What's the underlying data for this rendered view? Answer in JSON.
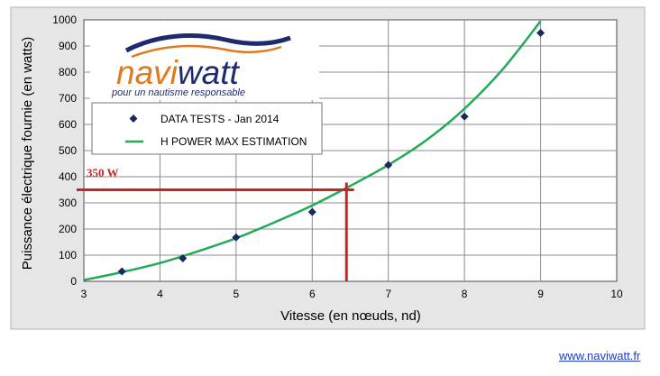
{
  "chart_data": {
    "type": "scatter",
    "title": "",
    "xlabel": "Vitesse (en nœuds, nd)",
    "ylabel": "Puissance électrique fournie (en watts)",
    "xlim": [
      3,
      10
    ],
    "ylim": [
      0,
      1000
    ],
    "xticks": [
      "3",
      "4",
      "5",
      "6",
      "7",
      "8",
      "9",
      "10"
    ],
    "yticks": [
      "0",
      "100",
      "200",
      "300",
      "400",
      "500",
      "600",
      "700",
      "800",
      "900",
      "1000"
    ],
    "grid": true,
    "legend_position": "top-left",
    "series": [
      {
        "name": "DATA TESTS -  Jan 2014",
        "kind": "scatter",
        "color": "#1a2a5a",
        "x": [
          3.5,
          4.3,
          5.0,
          6.0,
          7.0,
          8.0,
          9.0
        ],
        "y": [
          38,
          88,
          168,
          265,
          445,
          630,
          950
        ]
      },
      {
        "name": "H POWER MAX ESTIMATION",
        "kind": "line",
        "color": "#22aa55",
        "x": [
          3.0,
          3.5,
          4.0,
          4.5,
          5.0,
          5.5,
          6.0,
          6.5,
          7.0,
          7.5,
          8.0,
          8.5,
          9.0
        ],
        "y": [
          5,
          35,
          70,
          115,
          165,
          225,
          290,
          365,
          445,
          540,
          660,
          810,
          995
        ]
      }
    ],
    "annotations": [
      {
        "label": "350 W",
        "color": "#cc2222",
        "y_value": 350,
        "x_value": 6.45
      }
    ]
  },
  "logo": {
    "word_1": "navi",
    "word_2": "watt",
    "tagline": "pour un nautisme responsable",
    "color_orange": "#e07a1e",
    "color_navy": "#1e2a6e"
  },
  "footer": {
    "website": "www.naviwatt.fr"
  }
}
